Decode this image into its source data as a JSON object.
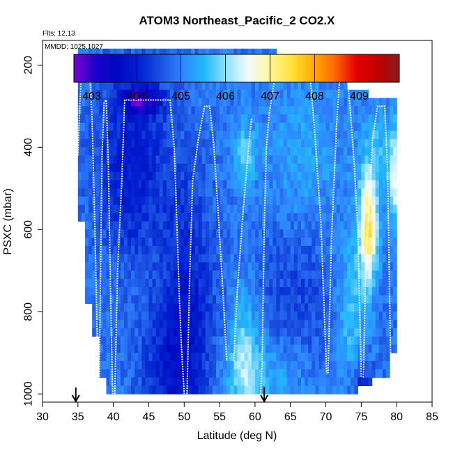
{
  "chart_data": {
    "type": "heatmap",
    "title": "ATOM3 Northeast_Pacific_2 CO2.X",
    "notes": [
      "Flts: 12,13",
      "MMDD: 1025,1027"
    ],
    "xlabel": "Latitude (deg N)",
    "ylabel": "PSXC (mbar)",
    "xlim": [
      30,
      85
    ],
    "ylim": [
      1020,
      140
    ],
    "x_ticks": [
      30,
      35,
      40,
      45,
      50,
      55,
      60,
      65,
      70,
      75,
      80,
      85
    ],
    "y_ticks": [
      200,
      400,
      600,
      800,
      1000
    ],
    "colorbar": {
      "range": [
        402.6,
        409.9
      ],
      "tick_values": [
        403,
        404,
        405,
        406,
        407,
        408,
        409
      ],
      "colors": [
        "#7a00d4",
        "#1a00c8",
        "#0008c0",
        "#0020d0",
        "#1a50e0",
        "#2f86ff",
        "#22b8ff",
        "#8fe0ff",
        "#f0fbff",
        "#fff7a0",
        "#ffe23a",
        "#ffae00",
        "#ff6a00",
        "#e80000",
        "#c00000",
        "#8a1a1a"
      ]
    },
    "markers": [
      {
        "label": "arrow",
        "latitude": 34.7
      },
      {
        "label": "arrow",
        "latitude": 61.3
      }
    ],
    "profiles": [
      {
        "name": "profile-1",
        "x": [
          35.0,
          35.3,
          35.6,
          36.2,
          36.6,
          37.0,
          37.4,
          37.9
        ],
        "y": [
          420,
          280,
          200,
          198,
          200,
          330,
          600,
          1000
        ]
      },
      {
        "name": "profile-2",
        "x": [
          38.0,
          38.2,
          38.4,
          38.7,
          39.0,
          39.3,
          39.6,
          39.9
        ],
        "y": [
          1000,
          700,
          420,
          290,
          285,
          450,
          750,
          1000
        ]
      },
      {
        "name": "profile-3",
        "x": [
          40.2,
          40.6,
          41.2,
          41.6,
          44.0,
          47.0,
          48.0,
          48.6,
          49.0
        ],
        "y": [
          1000,
          700,
          480,
          285,
          285,
          285,
          285,
          400,
          600
        ]
      },
      {
        "name": "profile-4",
        "x": [
          49.0,
          49.3,
          49.6,
          50.0
        ],
        "y": [
          600,
          760,
          880,
          1000
        ]
      },
      {
        "name": "profile-5",
        "x": [
          50.4,
          50.8,
          51.2,
          52.0,
          52.9,
          53.6,
          54.2,
          54.8,
          55.5,
          56.0
        ],
        "y": [
          1000,
          700,
          480,
          380,
          300,
          300,
          400,
          560,
          760,
          920
        ]
      },
      {
        "name": "profile-6",
        "x": [
          57.0,
          57.5,
          58.3,
          59.0,
          59.5
        ],
        "y": [
          920,
          750,
          560,
          420,
          330
        ]
      },
      {
        "name": "profile-7",
        "x": [
          60.8,
          61.0,
          61.3,
          61.6,
          62.0,
          62.8,
          63.3,
          64.0,
          65.5,
          66.3,
          67.0,
          67.8,
          68.5,
          69.3,
          70.1
        ],
        "y": [
          1000,
          920,
          600,
          400,
          320,
          230,
          180,
          180,
          180,
          180,
          200,
          230,
          380,
          580,
          950
        ]
      },
      {
        "name": "profile-8",
        "x": [
          70.3,
          70.8,
          71.5,
          72.0,
          73.0,
          73.5,
          74.0,
          74.5,
          75.0
        ],
        "y": [
          950,
          620,
          350,
          220,
          220,
          320,
          440,
          600,
          960
        ]
      },
      {
        "name": "profile-9",
        "x": [
          75.3,
          75.6,
          76.2,
          76.6,
          77.3,
          78.3,
          78.7,
          79.2
        ],
        "y": [
          960,
          700,
          500,
          380,
          300,
          300,
          450,
          980
        ]
      }
    ]
  }
}
